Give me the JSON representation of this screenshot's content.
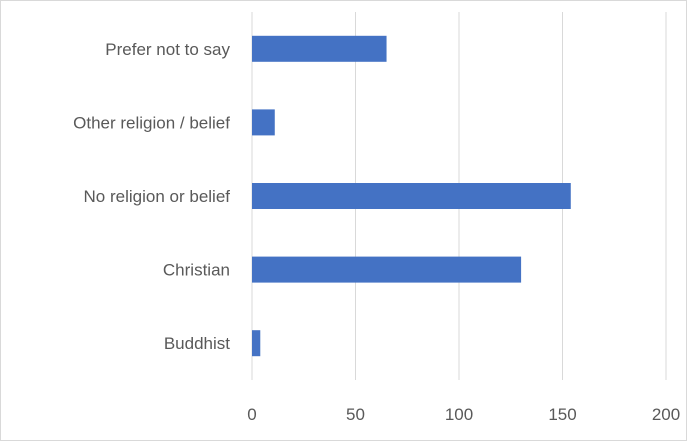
{
  "chart_data": {
    "type": "bar",
    "orientation": "horizontal",
    "categories": [
      "Buddhist",
      "Christian",
      "No religion or belief",
      "Other religion / belief",
      "Prefer not to say"
    ],
    "values": [
      4,
      130,
      154,
      11,
      65
    ],
    "xlim": [
      0,
      200
    ],
    "xticks": [
      0,
      50,
      100,
      150,
      200
    ],
    "grid": "vertical",
    "bar_color": "#4472C4",
    "title": "",
    "xlabel": "",
    "ylabel": ""
  }
}
